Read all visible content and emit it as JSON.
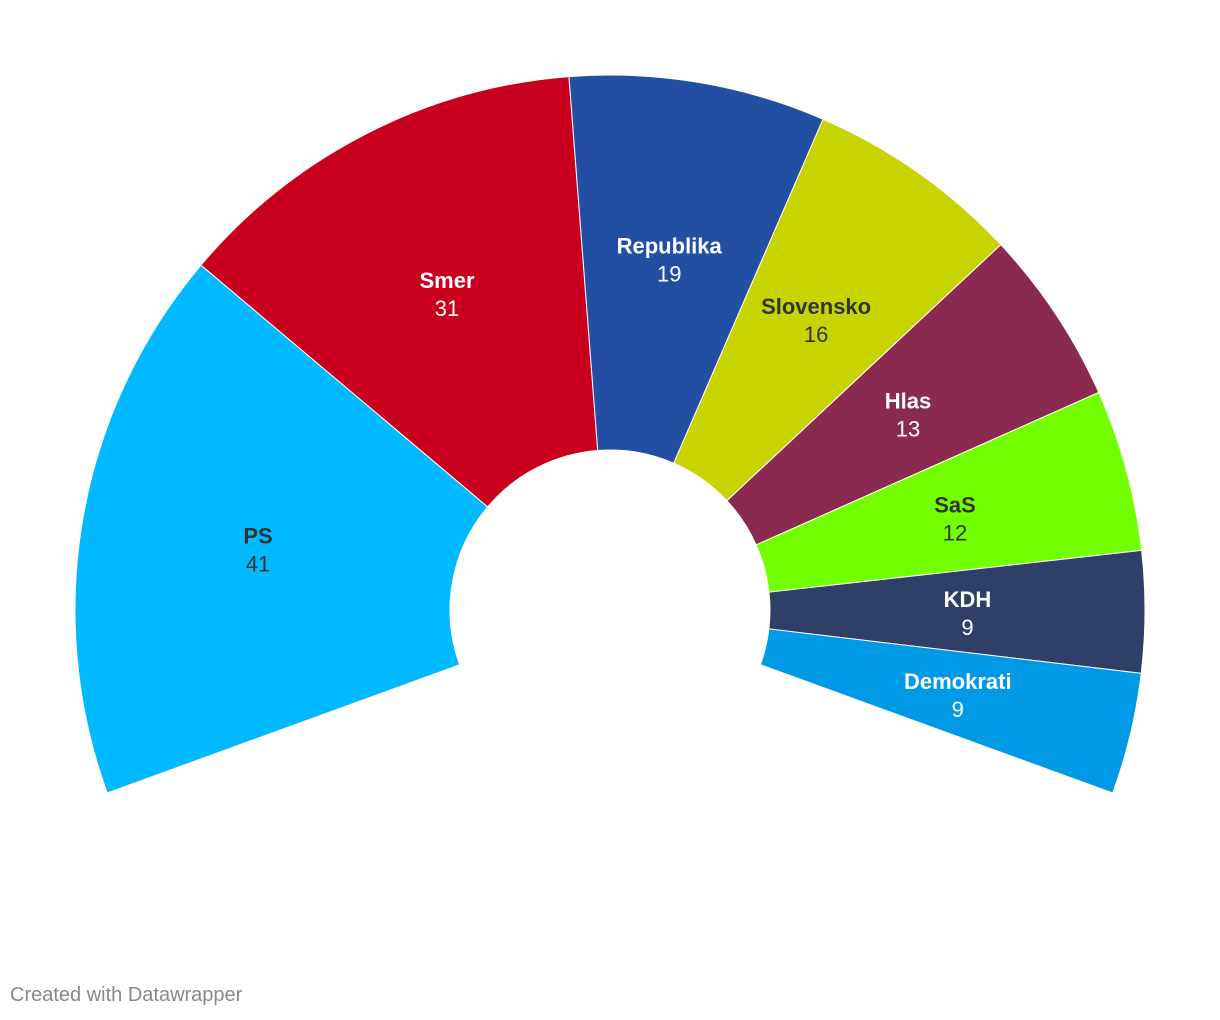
{
  "chart_data": {
    "type": "pie",
    "variant": "parliament-arc",
    "total": 150,
    "arc_degrees": 220,
    "legend": "none",
    "series": [
      {
        "name": "PS",
        "value": 41,
        "color": "#00b9ff",
        "label_color": "#333333"
      },
      {
        "name": "Smer",
        "value": 31,
        "color": "#c8001e",
        "label_color": "#ffffff"
      },
      {
        "name": "Republika",
        "value": 19,
        "color": "#234fa3",
        "label_color": "#ffffff"
      },
      {
        "name": "Slovensko",
        "value": 16,
        "color": "#c8d400",
        "label_color": "#333333"
      },
      {
        "name": "Hlas",
        "value": 13,
        "color": "#8a2a50",
        "label_color": "#ffffff"
      },
      {
        "name": "SaS",
        "value": 12,
        "color": "#74ff00",
        "label_color": "#333333"
      },
      {
        "name": "KDH",
        "value": 9,
        "color": "#2f3f68",
        "label_color": "#ffffff"
      },
      {
        "name": "Demokrati",
        "value": 9,
        "color": "#0099e6",
        "label_color": "#ffffff"
      }
    ]
  },
  "footer": {
    "credit": "Created with Datawrapper"
  }
}
